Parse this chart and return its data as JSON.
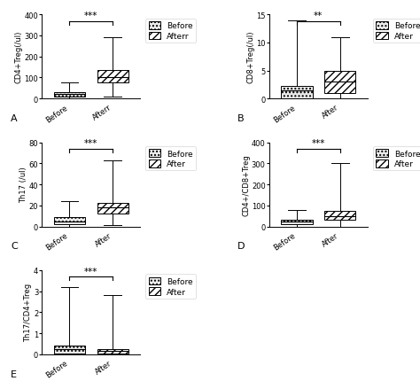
{
  "panels": [
    {
      "label": "A",
      "ylabel": "CD4+Treg(/ul)",
      "ylim": [
        0,
        400
      ],
      "yticks": [
        0,
        100,
        200,
        300,
        400
      ],
      "xlabel_before": "Before",
      "xlabel_after": "Afterr",
      "significance": "***",
      "before": {
        "whisker_low": 0,
        "q1": 10,
        "median": 22,
        "q3": 32,
        "whisker_high": 75
      },
      "after": {
        "whisker_low": 8,
        "q1": 75,
        "median": 100,
        "q3": 135,
        "whisker_high": 290
      },
      "legend_after_label": "Afterr"
    },
    {
      "label": "B",
      "ylabel": "CD8+Treg(/ul)",
      "ylim": [
        0,
        15
      ],
      "yticks": [
        0,
        5,
        10,
        15
      ],
      "xlabel_before": "Before",
      "xlabel_after": "After",
      "significance": "**",
      "before": {
        "whisker_low": 0,
        "q1": 0,
        "median": 1.5,
        "q3": 2.2,
        "whisker_high": 14
      },
      "after": {
        "whisker_low": 0,
        "q1": 1.0,
        "median": 3.0,
        "q3": 5.0,
        "whisker_high": 11
      },
      "legend_after_label": "After"
    },
    {
      "label": "C",
      "ylabel": "Th17 (/ul)",
      "ylim": [
        0,
        80
      ],
      "yticks": [
        0,
        20,
        40,
        60,
        80
      ],
      "xlabel_before": "Before",
      "xlabel_after": "After",
      "significance": "***",
      "before": {
        "whisker_low": 0,
        "q1": 2,
        "median": 5,
        "q3": 9,
        "whisker_high": 24
      },
      "after": {
        "whisker_low": 1,
        "q1": 12,
        "median": 18,
        "q3": 22,
        "whisker_high": 63
      },
      "legend_after_label": "After"
    },
    {
      "label": "D",
      "ylabel": "CD4+/CD8+Treg",
      "ylim": [
        0,
        400
      ],
      "yticks": [
        0,
        100,
        200,
        300,
        400
      ],
      "xlabel_before": "Before",
      "xlabel_after": "After",
      "significance": "***",
      "before": {
        "whisker_low": 0,
        "q1": 10,
        "median": 22,
        "q3": 32,
        "whisker_high": 80
      },
      "after": {
        "whisker_low": 0,
        "q1": 30,
        "median": 50,
        "q3": 72,
        "whisker_high": 300
      },
      "legend_after_label": "After"
    },
    {
      "label": "E",
      "ylabel": "Th17/CD4+Treg",
      "ylim": [
        0,
        4
      ],
      "yticks": [
        0,
        1,
        2,
        3,
        4
      ],
      "xlabel_before": "Before",
      "xlabel_after": "After",
      "significance": "***",
      "before": {
        "whisker_low": 0,
        "q1": 0.05,
        "median": 0.25,
        "q3": 0.42,
        "whisker_high": 3.2
      },
      "after": {
        "whisker_low": 0,
        "q1": 0.05,
        "median": 0.15,
        "q3": 0.25,
        "whisker_high": 2.8
      },
      "legend_after_label": "After"
    }
  ],
  "before_facecolor": "#ebebeb",
  "after_facecolor": "white",
  "after_hatch": "////",
  "before_hatch": "....",
  "sig_color": "black",
  "sig_fontsize": 7.5,
  "tick_fontsize": 6,
  "ylabel_fontsize": 6,
  "legend_fontsize": 6.5,
  "panel_label_fontsize": 8
}
